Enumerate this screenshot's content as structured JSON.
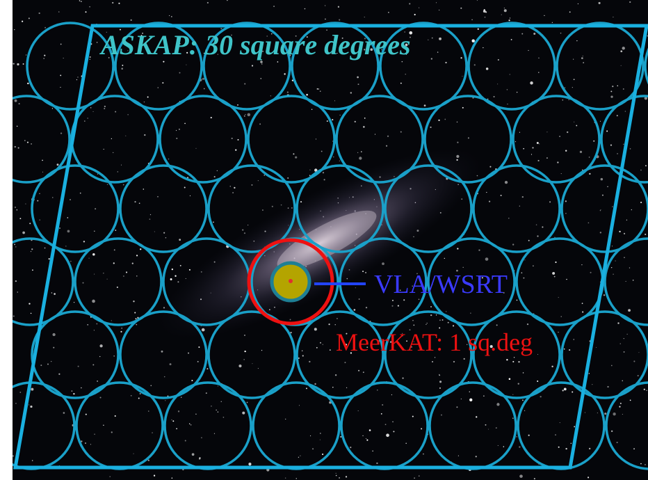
{
  "labels": {
    "askap": "ASKAP: 30 square degrees",
    "vla": "VLA/WSRT",
    "meerkat": "MeerKAT: 1 sq.deg"
  }
}
